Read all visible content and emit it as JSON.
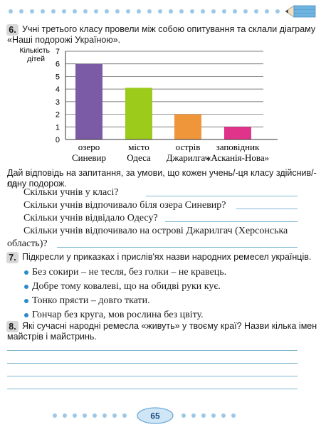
{
  "task6": {
    "number": "6.",
    "text_line1": "Учні третього класу провели між собою опитування та склали діаграму",
    "text_line2": "«Наші подорожі Україною».",
    "instruction_line1": "Дай відповідь на запитання, за умови, що кожен учень/-ця класу здійснив/-ла",
    "instruction_line2": "одну подорож.",
    "questions": [
      "Скільки учнів у класі?",
      "Скільки учнів відпочивало біля озера Синевир?",
      "Скільки учнів відвідало Одесу?",
      "Скільки учнів відпочивало на острові Джарилгач (Херсонська",
      "область)?"
    ]
  },
  "chart_data": {
    "type": "bar",
    "ylabel_line1": "Кількість",
    "ylabel_line2": "дітей",
    "ylim": [
      0,
      7
    ],
    "yticks": [
      "0",
      "1",
      "2",
      "3",
      "4",
      "5",
      "6",
      "7"
    ],
    "grid": true,
    "categories": [
      {
        "line1": "озеро",
        "line2": "Синевир"
      },
      {
        "line1": "місто",
        "line2": "Одеса"
      },
      {
        "line1": "острів",
        "line2": "Джарилгач"
      },
      {
        "line1": "заповідник",
        "line2": "«Асканія-Нова»"
      }
    ],
    "values": [
      6,
      4.1,
      2,
      1
    ],
    "colors": [
      "#7b5aa6",
      "#9ccb1c",
      "#f0963a",
      "#e0338a"
    ]
  },
  "task7": {
    "number": "7.",
    "text": "Підкресли у приказках і прислів'ях назви народних ремесел українців.",
    "proverbs": [
      "Без сокири – не тесля, без голки – не кравець.",
      "Добре тому ковалеві, що на обидві руки кує.",
      "Тонко прясти – довго ткати.",
      "Гончар без круга, мов рослина без цвіту."
    ]
  },
  "task8": {
    "number": "8.",
    "text_line1": "Які сучасні народні ремесла «живуть» у твоєму краї? Назви кілька імен",
    "text_line2": "майстрів і майстринь."
  },
  "page_number": "65",
  "colors": {
    "accent": "#2a8bc9",
    "dots": "#9cc8e6",
    "lines": "#7fb8d4"
  }
}
